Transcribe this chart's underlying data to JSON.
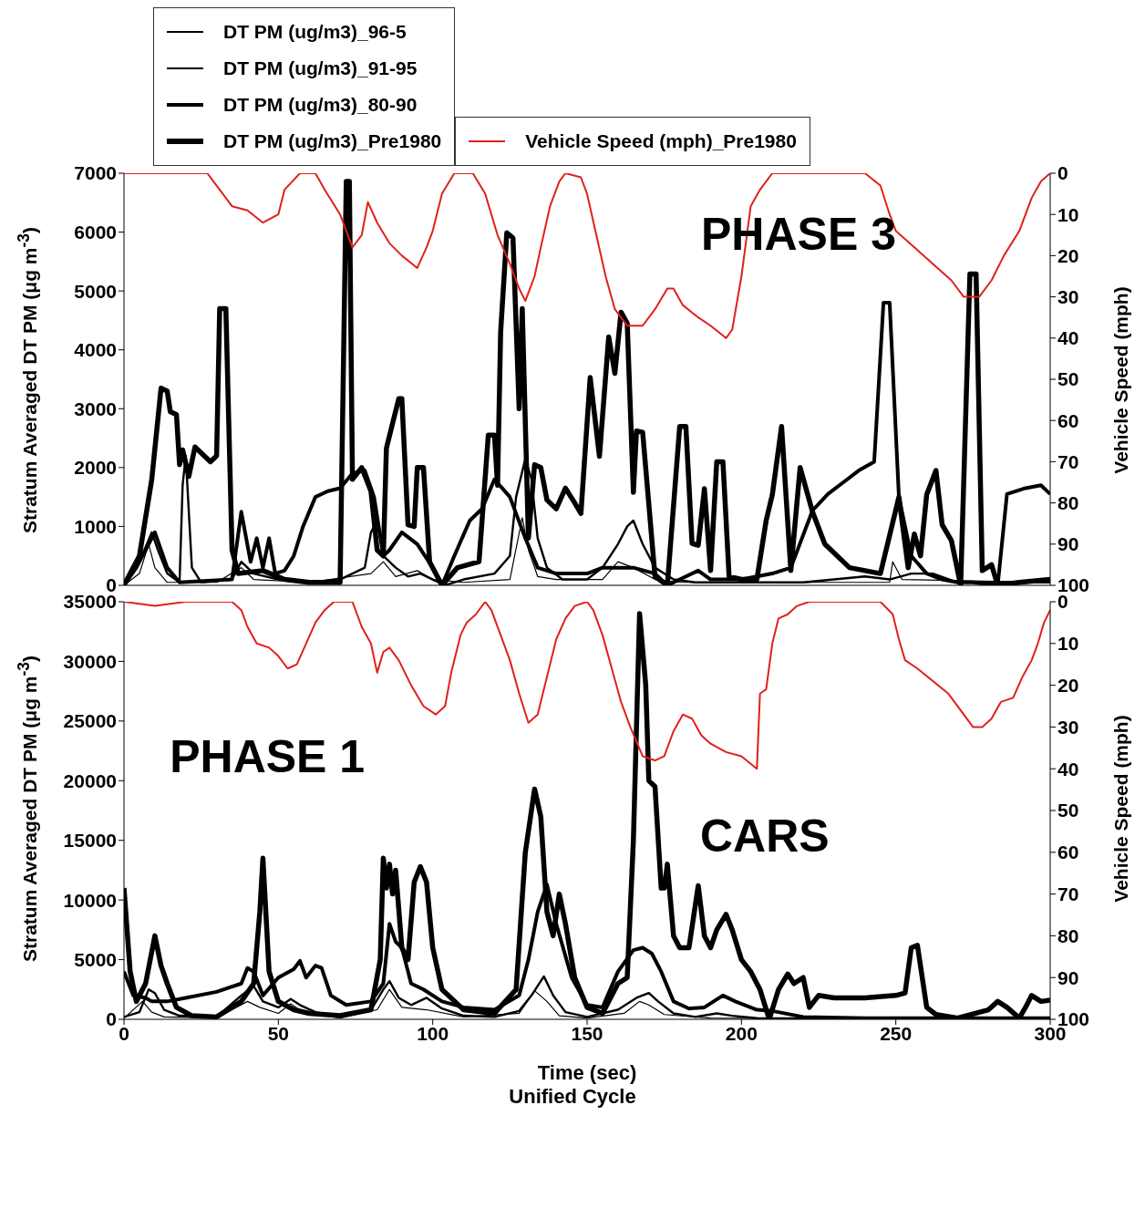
{
  "chart_data": [
    {
      "type": "line",
      "ylabel": "Stratum Averaged DT PM (μg m$^{-3}$)",
      "y2label": "Vehicle Speed (mph)",
      "xlim": [
        0,
        300
      ],
      "xticks": [
        0,
        50,
        100,
        150,
        200,
        250,
        300
      ],
      "ylim": [
        0,
        7000
      ],
      "yticks": [
        0,
        1000,
        2000,
        3000,
        4000,
        5000,
        6000,
        7000
      ],
      "y2lim": [
        100,
        0
      ],
      "y2ticks": [
        0,
        10,
        20,
        30,
        40,
        50,
        60,
        70,
        80,
        90,
        100
      ],
      "tick_labels": "y",
      "legend": "top",
      "line_style": "solid",
      "annotations": [
        "PHASE 3"
      ],
      "series": [
        {
          "name": "DT PM (ug/m3)_96-5",
          "color": "#000000",
          "x": [
            0,
            5,
            8,
            10,
            14,
            30,
            38,
            42,
            60,
            80,
            84,
            88,
            95,
            100,
            110,
            125,
            129,
            131,
            134,
            140,
            155,
            160,
            165,
            172,
            180,
            200,
            230,
            248,
            249,
            252,
            300
          ],
          "values": [
            0,
            200,
            700,
            300,
            50,
            50,
            300,
            100,
            50,
            200,
            400,
            150,
            250,
            100,
            50,
            100,
            1150,
            600,
            150,
            100,
            100,
            400,
            300,
            100,
            50,
            50,
            50,
            50,
            400,
            100,
            50
          ]
        },
        {
          "name": "DT PM (ug/m3)_91-95",
          "color": "#000000",
          "x": [
            0,
            5,
            9,
            11,
            14,
            18,
            19,
            20,
            22,
            25,
            35,
            38,
            42,
            50,
            60,
            70,
            78,
            80,
            82,
            84,
            88,
            92,
            96,
            100,
            104,
            110,
            120,
            125,
            127,
            130,
            132,
            134,
            137,
            142,
            150,
            155,
            160,
            163,
            165,
            168,
            172,
            178,
            185,
            200,
            220,
            240,
            248,
            255,
            262,
            270,
            300
          ],
          "values": [
            0,
            400,
            900,
            600,
            200,
            50,
            1700,
            2200,
            300,
            50,
            100,
            400,
            200,
            100,
            50,
            100,
            300,
            900,
            1100,
            500,
            300,
            150,
            200,
            100,
            0,
            100,
            200,
            500,
            1500,
            2150,
            1800,
            800,
            300,
            100,
            100,
            300,
            700,
            1000,
            1100,
            700,
            300,
            100,
            50,
            50,
            50,
            150,
            100,
            200,
            200,
            50,
            50
          ]
        },
        {
          "name": "DT PM (ug/m3)_80-90",
          "color": "#000000",
          "x": [
            0,
            4,
            8,
            10,
            14,
            18,
            35,
            38,
            41,
            43,
            45,
            47,
            49,
            52,
            55,
            58,
            62,
            66,
            70,
            74,
            78,
            81,
            84,
            86,
            90,
            95,
            100,
            103,
            107,
            112,
            116,
            120,
            125,
            130,
            134,
            140,
            150,
            155,
            165,
            172,
            176,
            180,
            186,
            190,
            200,
            210,
            216,
            223,
            228,
            233,
            238,
            243,
            246,
            248,
            251,
            255,
            260,
            265,
            270,
            275,
            283,
            286,
            292,
            297,
            300
          ],
          "values": [
            0,
            300,
            700,
            900,
            300,
            50,
            100,
            1250,
            400,
            800,
            300,
            800,
            200,
            250,
            500,
            1000,
            1500,
            1600,
            1650,
            1900,
            1950,
            1500,
            500,
            600,
            900,
            700,
            300,
            0,
            500,
            1100,
            1300,
            1800,
            1500,
            800,
            300,
            200,
            200,
            300,
            300,
            200,
            0,
            100,
            250,
            100,
            100,
            200,
            300,
            1270,
            1550,
            1750,
            1950,
            2100,
            4800,
            4800,
            1500,
            500,
            200,
            100,
            50,
            50,
            0,
            1550,
            1650,
            1700,
            1550
          ]
        },
        {
          "name": "DT PM (ug/m3)_Pre1980",
          "color": "#000000",
          "x": [
            0,
            5,
            9,
            12,
            14,
            15,
            17,
            18,
            19,
            21,
            23,
            28,
            30,
            31,
            33,
            35,
            37,
            45,
            52,
            60,
            70,
            72,
            73,
            74,
            77,
            80,
            82,
            84,
            85,
            87,
            89,
            90,
            92,
            94,
            95,
            97,
            99,
            103,
            108,
            115,
            118,
            120,
            121,
            122,
            124,
            126,
            128,
            129,
            131,
            133,
            135,
            137,
            140,
            143,
            146,
            148,
            151,
            154,
            157,
            159,
            161,
            163,
            165,
            166,
            168,
            172,
            176,
            180,
            182,
            184,
            186,
            188,
            190,
            192,
            194,
            196,
            200,
            205,
            208,
            210,
            213,
            216,
            219,
            223,
            227,
            235,
            245,
            251,
            254,
            256,
            258,
            260,
            263,
            265,
            268,
            271,
            274,
            276,
            278,
            281,
            283,
            290,
            300
          ],
          "values": [
            0,
            500,
            1800,
            3350,
            3300,
            2950,
            2900,
            2050,
            2300,
            1850,
            2350,
            2100,
            2200,
            4700,
            4700,
            600,
            200,
            250,
            100,
            50,
            50,
            6860,
            6860,
            1800,
            2000,
            1600,
            600,
            500,
            2330,
            2750,
            3170,
            3170,
            1030,
            1000,
            2000,
            2000,
            400,
            0,
            300,
            400,
            2550,
            2550,
            1700,
            4300,
            5990,
            5900,
            3000,
            4700,
            800,
            2050,
            2000,
            1450,
            1300,
            1650,
            1400,
            1220,
            3530,
            2190,
            4220,
            3600,
            4640,
            4450,
            1580,
            2620,
            2600,
            150,
            0,
            2700,
            2700,
            710,
            680,
            1640,
            250,
            2100,
            2100,
            150,
            100,
            100,
            1100,
            1540,
            2700,
            250,
            2000,
            1250,
            700,
            300,
            200,
            1500,
            300,
            870,
            500,
            1540,
            1950,
            1030,
            760,
            0,
            5290,
            5290,
            250,
            350,
            0,
            50,
            100
          ]
        },
        {
          "name": "Vehicle Speed (mph)_Pre1980",
          "color": "#e0201b",
          "axis": "y2",
          "x": [
            0,
            10,
            20,
            27,
            30,
            35,
            40,
            45,
            50,
            52,
            57,
            62,
            65,
            70,
            74,
            77,
            79,
            82,
            86,
            90,
            95,
            98,
            100,
            103,
            107,
            113,
            117,
            121,
            125,
            128,
            130,
            133,
            135,
            138,
            141,
            143,
            148,
            150,
            153,
            156,
            159,
            163,
            168,
            172,
            176,
            178,
            181,
            186,
            190,
            195,
            197,
            200,
            203,
            206,
            210,
            230,
            240,
            245,
            248,
            250,
            256,
            262,
            268,
            272,
            277,
            281,
            285,
            290,
            294,
            297,
            300
          ],
          "values": [
            0,
            0,
            0,
            0,
            3,
            8,
            9,
            12,
            10,
            4,
            0,
            0,
            4,
            10,
            18,
            15,
            7,
            12,
            17,
            20,
            23,
            18,
            14,
            5,
            0,
            0,
            5,
            15,
            22,
            28,
            31,
            25,
            18,
            8,
            2,
            0,
            1,
            5,
            15,
            25,
            33,
            37,
            37,
            33,
            28,
            28,
            32,
            35,
            37,
            40,
            38,
            25,
            8,
            4,
            0,
            0,
            0,
            3,
            10,
            14,
            18,
            22,
            26,
            30,
            30,
            26,
            20,
            14,
            6,
            2,
            0
          ]
        }
      ]
    },
    {
      "type": "line",
      "ylabel": "Stratum Averaged DT PM (μg m$^{-3}$)",
      "y2label": "Vehicle Speed (mph)",
      "xlabel": "Time (sec)",
      "xlim": [
        0,
        300
      ],
      "xticks": [
        0,
        50,
        100,
        150,
        200,
        250,
        300
      ],
      "ylim": [
        0,
        35000
      ],
      "yticks": [
        0,
        5000,
        10000,
        15000,
        20000,
        25000,
        30000,
        35000
      ],
      "y2lim": [
        100,
        0
      ],
      "y2ticks": [
        0,
        10,
        20,
        30,
        40,
        50,
        60,
        70,
        80,
        90,
        100
      ],
      "line_style": "solid",
      "annotations": [
        "PHASE 1",
        "CARS",
        "Unified Cycle"
      ],
      "series": [
        {
          "color": "#000000",
          "x": [
            0,
            6,
            9,
            13,
            30,
            40,
            44,
            50,
            54,
            58,
            70,
            82,
            86,
            90,
            98,
            110,
            128,
            133,
            137,
            141,
            150,
            162,
            167,
            170,
            175,
            190,
            300
          ],
          "values": [
            100,
            1500,
            600,
            200,
            100,
            1500,
            1000,
            500,
            1300,
            600,
            100,
            800,
            2500,
            1000,
            800,
            200,
            500,
            2400,
            1500,
            300,
            100,
            500,
            1500,
            1200,
            400,
            100,
            50
          ]
        },
        {
          "color": "#000000",
          "x": [
            0,
            5,
            8,
            10,
            13,
            18,
            30,
            38,
            42,
            45,
            50,
            54,
            57,
            62,
            70,
            80,
            84,
            86,
            89,
            93,
            98,
            103,
            110,
            120,
            128,
            132,
            136,
            139,
            143,
            150,
            160,
            166,
            170,
            173,
            178,
            185,
            192,
            197,
            205,
            300
          ],
          "values": [
            200,
            600,
            2500,
            2200,
            800,
            300,
            200,
            2000,
            2800,
            1500,
            1000,
            1700,
            1200,
            600,
            200,
            800,
            2500,
            3200,
            1800,
            1200,
            1800,
            900,
            300,
            200,
            700,
            2000,
            3600,
            2000,
            600,
            200,
            800,
            1800,
            2200,
            1500,
            500,
            200,
            500,
            300,
            100,
            50
          ]
        },
        {
          "color": "#000000",
          "x": [
            0,
            3,
            7,
            9,
            14,
            20,
            30,
            38,
            40,
            42,
            45,
            50,
            55,
            57,
            59,
            62,
            64,
            67,
            72,
            80,
            84,
            86,
            88,
            90,
            93,
            97,
            103,
            110,
            120,
            128,
            131,
            134,
            137,
            140,
            145,
            150,
            155,
            160,
            165,
            168,
            171,
            174,
            178,
            183,
            188,
            194,
            198,
            205,
            210,
            220,
            240,
            270,
            300
          ],
          "values": [
            4000,
            2000,
            1800,
            1500,
            1500,
            1800,
            2300,
            3000,
            4300,
            4000,
            2000,
            3500,
            4200,
            4900,
            3500,
            4500,
            4300,
            2000,
            1200,
            1500,
            3000,
            8000,
            6500,
            6000,
            3000,
            2500,
            1500,
            1000,
            800,
            2000,
            5000,
            9000,
            11300,
            8000,
            3500,
            1200,
            1000,
            4000,
            5800,
            6000,
            5500,
            4000,
            1500,
            900,
            1000,
            2000,
            1500,
            800,
            700,
            200,
            100,
            100,
            100
          ]
        },
        {
          "color": "#000000",
          "x": [
            0,
            2,
            4,
            7,
            10,
            12,
            14,
            17,
            22,
            30,
            38,
            42,
            44,
            45,
            47,
            50,
            55,
            60,
            70,
            80,
            83,
            84,
            85,
            86,
            87,
            88,
            90,
            92,
            94,
            96,
            98,
            100,
            103,
            110,
            120,
            127,
            130,
            133,
            135,
            137,
            139,
            141,
            143,
            146,
            150,
            155,
            160,
            163,
            165,
            167,
            169,
            170,
            172,
            174,
            175,
            176,
            178,
            180,
            183,
            186,
            188,
            190,
            192,
            195,
            197,
            200,
            203,
            206,
            209,
            212,
            215,
            217,
            220,
            222,
            225,
            230,
            240,
            250,
            253,
            255,
            257,
            260,
            263,
            270,
            280,
            283,
            286,
            290,
            292,
            294,
            297,
            300
          ],
          "values": [
            11000,
            4000,
            1500,
            3000,
            7000,
            4500,
            3000,
            1000,
            300,
            200,
            1500,
            3000,
            9000,
            13500,
            4000,
            1500,
            800,
            500,
            300,
            800,
            5000,
            13500,
            11000,
            13000,
            10500,
            12500,
            6000,
            5000,
            11500,
            12800,
            11500,
            6000,
            2500,
            800,
            500,
            2500,
            14000,
            19300,
            17000,
            9000,
            7000,
            10500,
            8000,
            3500,
            1000,
            500,
            3000,
            3500,
            15000,
            34000,
            28000,
            20000,
            19500,
            11000,
            11000,
            13000,
            7000,
            6000,
            6000,
            11200,
            7000,
            6000,
            7500,
            8800,
            7500,
            5000,
            4000,
            2500,
            0,
            2500,
            3800,
            3000,
            3500,
            1000,
            2000,
            1800,
            1800,
            2000,
            2200,
            6000,
            6200,
            1000,
            400,
            100,
            800,
            1500,
            1000,
            100,
            1000,
            2000,
            1500,
            1600
          ]
        },
        {
          "color": "#e0201b",
          "axis": "y2",
          "x": [
            0,
            10,
            20,
            30,
            35,
            38,
            40,
            43,
            47,
            50,
            53,
            56,
            59,
            62,
            65,
            68,
            74,
            77,
            80,
            82,
            84,
            86,
            89,
            93,
            97,
            101,
            104,
            106,
            109,
            111,
            114,
            117,
            119,
            122,
            125,
            128,
            131,
            134,
            137,
            140,
            143,
            146,
            150,
            152,
            155,
            158,
            161,
            164,
            168,
            172,
            175,
            178,
            181,
            184,
            187,
            190,
            195,
            200,
            205,
            206,
            208,
            210,
            212,
            215,
            218,
            222,
            240,
            245,
            249,
            251,
            253,
            257,
            262,
            267,
            271,
            275,
            278,
            281,
            284,
            288,
            291,
            294,
            296,
            298,
            300
          ],
          "values": [
            0,
            1,
            0,
            0,
            0,
            2,
            6,
            10,
            11,
            13,
            16,
            15,
            10,
            5,
            2,
            0,
            0,
            6,
            10,
            17,
            12,
            11,
            14,
            20,
            25,
            27,
            25,
            17,
            8,
            5,
            3,
            0,
            2,
            8,
            14,
            22,
            29,
            27,
            18,
            9,
            4,
            1,
            0,
            2,
            8,
            16,
            24,
            30,
            37,
            38,
            37,
            31,
            27,
            28,
            32,
            34,
            36,
            37,
            40,
            22,
            21,
            10,
            4,
            3,
            1,
            0,
            0,
            0,
            3,
            9,
            14,
            16,
            19,
            22,
            26,
            30,
            30,
            28,
            24,
            23,
            18,
            14,
            10,
            5,
            2
          ]
        }
      ]
    }
  ]
}
